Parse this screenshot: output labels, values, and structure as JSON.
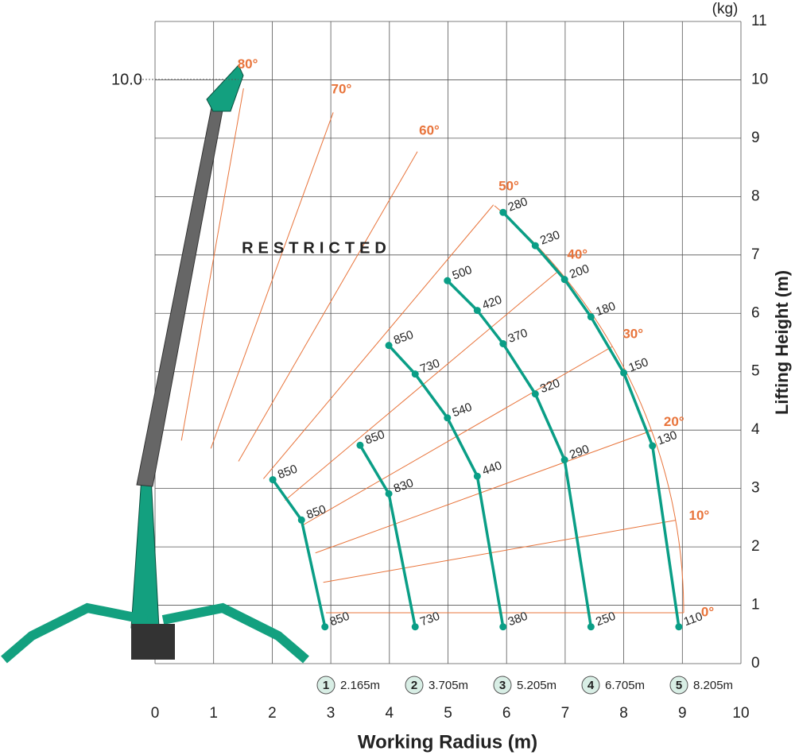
{
  "chart_data": {
    "type": "scatter",
    "unit": "(kg)",
    "xlabel": "Working Radius (m)",
    "ylabel": "Lifting Height (m)",
    "region_label": "RESTRICTED",
    "max_height": {
      "value": 10,
      "label": "10.0"
    },
    "xlim": [
      0,
      10
    ],
    "ylim": [
      0,
      11
    ],
    "xticks": [
      0,
      1,
      2,
      3,
      4,
      5,
      6,
      7,
      8,
      9,
      10
    ],
    "yticks": [
      0,
      1,
      2,
      3,
      4,
      5,
      6,
      7,
      8,
      9,
      10,
      11
    ],
    "grid": true,
    "angles": [
      {
        "value": 0,
        "label": "0°"
      },
      {
        "value": 10,
        "label": "10°"
      },
      {
        "value": 20,
        "label": "20°"
      },
      {
        "value": 30,
        "label": "30°"
      },
      {
        "value": 40,
        "label": "40°"
      },
      {
        "value": 50,
        "label": "50°"
      },
      {
        "value": 60,
        "label": "60°"
      },
      {
        "value": 70,
        "label": "70°"
      },
      {
        "value": 80,
        "label": "80°"
      }
    ],
    "series": [
      {
        "id": "1",
        "name": "2.165m",
        "color": "#0a9e86",
        "x": [
          2.01,
          2.5,
          2.9
        ],
        "y": [
          3.15,
          2.46,
          0.63
        ],
        "values": [
          850,
          850,
          850
        ]
      },
      {
        "id": "2",
        "name": "3.705m",
        "color": "#0a9e86",
        "x": [
          3.5,
          3.99,
          4.44
        ],
        "y": [
          3.74,
          2.91,
          0.63
        ],
        "values": [
          850,
          830,
          730
        ]
      },
      {
        "id": "3",
        "name": "5.205m",
        "color": "#0a9e86",
        "x": [
          3.99,
          4.44,
          4.99,
          5.5,
          5.94
        ],
        "y": [
          5.45,
          4.96,
          4.21,
          3.21,
          0.63
        ],
        "values": [
          850,
          730,
          540,
          440,
          380
        ]
      },
      {
        "id": "4",
        "name": "6.705m",
        "color": "#0a9e86",
        "x": [
          4.99,
          5.5,
          5.94,
          6.49,
          6.99,
          7.44
        ],
        "y": [
          6.56,
          6.05,
          5.48,
          4.62,
          3.49,
          0.63
        ],
        "values": [
          500,
          420,
          370,
          320,
          290,
          250
        ]
      },
      {
        "id": "5",
        "name": "8.205m",
        "color": "#0a9e86",
        "x": [
          5.94,
          6.49,
          6.99,
          7.44,
          8.0,
          8.49,
          8.94
        ],
        "y": [
          7.73,
          7.16,
          6.58,
          5.94,
          4.98,
          3.73,
          0.63
        ],
        "values": [
          280,
          230,
          200,
          180,
          150,
          130,
          110
        ]
      }
    ]
  }
}
